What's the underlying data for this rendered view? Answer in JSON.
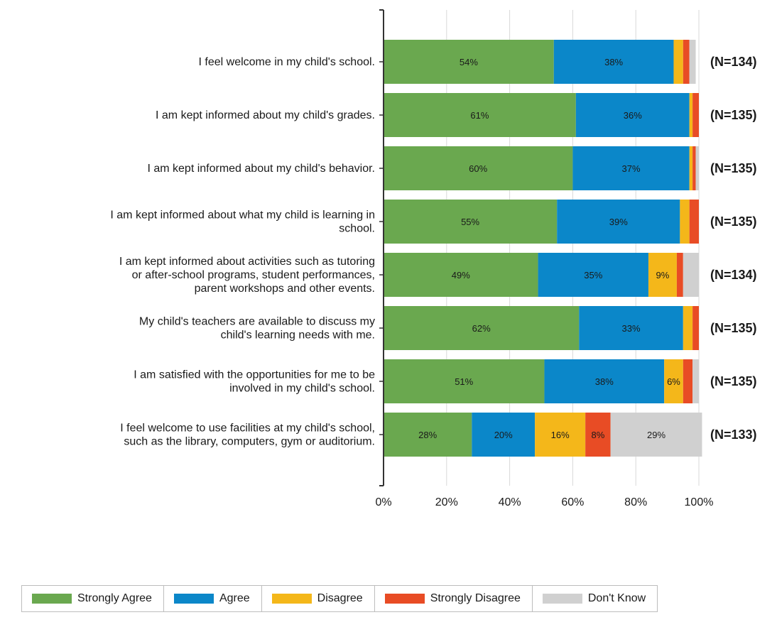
{
  "chart_data": {
    "type": "bar",
    "orientation": "horizontal",
    "stacked": true,
    "categories": [
      "I feel welcome in my child's school.",
      "I am kept informed about my child's grades.",
      "I am kept informed about my child's behavior.",
      "I am kept informed about what my child is learning in school.",
      "I am kept informed about activities such as tutoring or after-school programs, student performances, parent workshops and other events.",
      "My child's teachers are available to discuss my child's learning needs with me.",
      "I am satisfied with the opportunities for me to be involved in my child's school.",
      "I feel welcome to use facilities at my child's school, such as the library, computers, gym or auditorium."
    ],
    "category_lines": [
      [
        "I feel welcome in my child's school."
      ],
      [
        "I am kept informed about my child's grades."
      ],
      [
        "I am kept informed about my child's behavior."
      ],
      [
        "I am kept informed about what my child is learning in",
        "school."
      ],
      [
        "I am kept informed about activities such as tutoring",
        "or after-school programs, student performances,",
        "parent workshops and other events."
      ],
      [
        "My child's teachers are available to discuss my",
        "child's learning needs with me."
      ],
      [
        "I am satisfied with the opportunities for me to be",
        "involved in my child's school."
      ],
      [
        "I feel welcome to use facilities at my child's school,",
        "such as the library, computers, gym or auditorium."
      ]
    ],
    "series": [
      {
        "name": "Strongly Agree",
        "color": "#6aa84f",
        "values": [
          54,
          61,
          60,
          55,
          49,
          62,
          51,
          28
        ]
      },
      {
        "name": "Agree",
        "color": "#0b87c9",
        "values": [
          38,
          36,
          37,
          39,
          35,
          33,
          38,
          20
        ]
      },
      {
        "name": "Disagree",
        "color": "#f4b71a",
        "values": [
          3,
          1,
          1,
          3,
          9,
          3,
          6,
          16
        ]
      },
      {
        "name": "Strongly Disagree",
        "color": "#e84c25",
        "values": [
          2,
          2,
          1,
          3,
          2,
          2,
          3,
          8
        ]
      },
      {
        "name": "Don't Know",
        "color": "#d0d0d0",
        "values": [
          2,
          0,
          1,
          0,
          5,
          0,
          2,
          29
        ]
      }
    ],
    "data_labels": [
      [
        "54%",
        "38%",
        "",
        "",
        ""
      ],
      [
        "61%",
        "36%",
        "",
        "",
        ""
      ],
      [
        "60%",
        "37%",
        "",
        "",
        ""
      ],
      [
        "55%",
        "39%",
        "",
        "",
        ""
      ],
      [
        "49%",
        "35%",
        "9%",
        "",
        ""
      ],
      [
        "62%",
        "33%",
        "",
        "",
        ""
      ],
      [
        "51%",
        "38%",
        "6%",
        "",
        ""
      ],
      [
        "28%",
        "20%",
        "16%",
        "8%",
        "29%"
      ]
    ],
    "n_labels": [
      "(N=134)",
      "(N=135)",
      "(N=135)",
      "(N=135)",
      "(N=134)",
      "(N=135)",
      "(N=135)",
      "(N=133)"
    ],
    "x_ticks": [
      "0%",
      "20%",
      "40%",
      "60%",
      "80%",
      "100%"
    ],
    "xlim": [
      0,
      100
    ],
    "grid": true,
    "legend_position": "bottom"
  }
}
